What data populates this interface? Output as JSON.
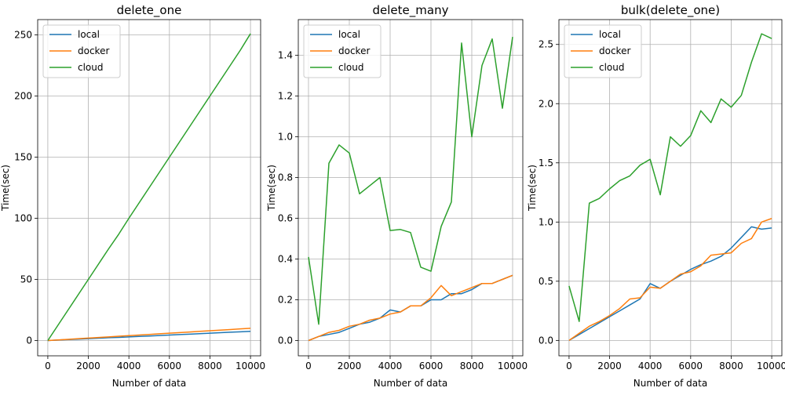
{
  "chart_data": [
    {
      "type": "line",
      "title": "delete_one",
      "xlabel": "Number of data",
      "ylabel": "Time(sec)",
      "xlim": [
        -500,
        10500
      ],
      "ylim": [
        -12.5,
        262.5
      ],
      "xticks": [
        0,
        2000,
        4000,
        6000,
        8000,
        10000
      ],
      "yticks": [
        0,
        50,
        100,
        150,
        200,
        250
      ],
      "x": [
        0,
        500,
        1000,
        1500,
        2000,
        2500,
        3000,
        3500,
        4000,
        4500,
        5000,
        5500,
        6000,
        6500,
        7000,
        7500,
        8000,
        8500,
        9000,
        9500,
        10000
      ],
      "grid": true,
      "legend": "upper left",
      "series": [
        {
          "name": "local",
          "color": "#1f77b4",
          "values": [
            0,
            0.4,
            0.8,
            1.1,
            1.5,
            1.9,
            2.3,
            2.6,
            3.0,
            3.4,
            3.7,
            4.1,
            4.5,
            4.9,
            5.2,
            5.6,
            6.0,
            6.4,
            6.8,
            7.1,
            7.5
          ]
        },
        {
          "name": "docker",
          "color": "#ff7f0e",
          "values": [
            0,
            0.5,
            1.0,
            1.5,
            2.0,
            2.5,
            3.0,
            3.5,
            4.0,
            4.5,
            5.0,
            5.5,
            6.0,
            6.5,
            7.0,
            7.5,
            8.0,
            8.5,
            9.0,
            9.5,
            10.0
          ]
        },
        {
          "name": "cloud",
          "color": "#2ca02c",
          "values": [
            0,
            12.5,
            25.0,
            37.5,
            50.0,
            62.5,
            75.0,
            87.0,
            100.0,
            112.5,
            125.0,
            137.5,
            150.0,
            162.5,
            175.0,
            187.5,
            200.0,
            212.5,
            225.0,
            237.5,
            251.0
          ]
        }
      ]
    },
    {
      "type": "line",
      "title": "delete_many",
      "xlabel": "Number of data",
      "ylabel": "Time(sec)",
      "xlim": [
        -500,
        10500
      ],
      "ylim": [
        -0.075,
        1.575
      ],
      "xticks": [
        0,
        2000,
        4000,
        6000,
        8000,
        10000
      ],
      "yticks": [
        0.0,
        0.2,
        0.4,
        0.6,
        0.8,
        1.0,
        1.2,
        1.4
      ],
      "x": [
        0,
        500,
        1000,
        1500,
        2000,
        2500,
        3000,
        3500,
        4000,
        4500,
        5000,
        5500,
        6000,
        6500,
        7000,
        7500,
        8000,
        8500,
        9000,
        9500,
        10000
      ],
      "grid": true,
      "legend": "upper left",
      "series": [
        {
          "name": "local",
          "color": "#1f77b4",
          "values": [
            0.0,
            0.02,
            0.03,
            0.04,
            0.06,
            0.08,
            0.09,
            0.11,
            0.15,
            0.14,
            0.17,
            0.17,
            0.2,
            0.2,
            0.23,
            0.23,
            0.25,
            0.28,
            0.28,
            0.3,
            0.32
          ]
        },
        {
          "name": "docker",
          "color": "#ff7f0e",
          "values": [
            0.0,
            0.02,
            0.04,
            0.05,
            0.07,
            0.08,
            0.1,
            0.11,
            0.13,
            0.14,
            0.17,
            0.17,
            0.21,
            0.27,
            0.22,
            0.24,
            0.26,
            0.28,
            0.28,
            0.3,
            0.32
          ]
        },
        {
          "name": "cloud",
          "color": "#2ca02c",
          "values": [
            0.41,
            0.08,
            0.87,
            0.96,
            0.92,
            0.72,
            0.76,
            0.8,
            0.54,
            0.545,
            0.53,
            0.36,
            0.34,
            0.56,
            0.68,
            1.46,
            1.0,
            1.35,
            1.48,
            1.14,
            1.49
          ]
        }
      ]
    },
    {
      "type": "line",
      "title": "bulk(delete_one)",
      "xlabel": "Number of data",
      "ylabel": "Time(sec)",
      "xlim": [
        -500,
        10500
      ],
      "ylim": [
        -0.13,
        2.71
      ],
      "xticks": [
        0,
        2000,
        4000,
        6000,
        8000,
        10000
      ],
      "yticks": [
        0.0,
        0.5,
        1.0,
        1.5,
        2.0,
        2.5
      ],
      "x": [
        0,
        500,
        1000,
        1500,
        2000,
        2500,
        3000,
        3500,
        4000,
        4500,
        5000,
        5500,
        6000,
        6500,
        7000,
        7500,
        8000,
        8500,
        9000,
        9500,
        10000
      ],
      "grid": true,
      "legend": "upper left",
      "series": [
        {
          "name": "local",
          "color": "#1f77b4",
          "values": [
            0.0,
            0.05,
            0.1,
            0.15,
            0.2,
            0.25,
            0.3,
            0.35,
            0.48,
            0.44,
            0.5,
            0.55,
            0.6,
            0.64,
            0.67,
            0.71,
            0.78,
            0.87,
            0.96,
            0.94,
            0.95
          ]
        },
        {
          "name": "docker",
          "color": "#ff7f0e",
          "values": [
            0.0,
            0.06,
            0.12,
            0.16,
            0.21,
            0.27,
            0.35,
            0.36,
            0.45,
            0.44,
            0.5,
            0.56,
            0.58,
            0.63,
            0.72,
            0.73,
            0.74,
            0.82,
            0.86,
            1.0,
            1.03
          ]
        },
        {
          "name": "cloud",
          "color": "#2ca02c",
          "values": [
            0.46,
            0.16,
            1.16,
            1.2,
            1.28,
            1.35,
            1.39,
            1.48,
            1.53,
            1.23,
            1.72,
            1.64,
            1.73,
            1.94,
            1.84,
            2.04,
            1.97,
            2.07,
            2.35,
            2.59,
            2.55
          ]
        }
      ]
    }
  ]
}
